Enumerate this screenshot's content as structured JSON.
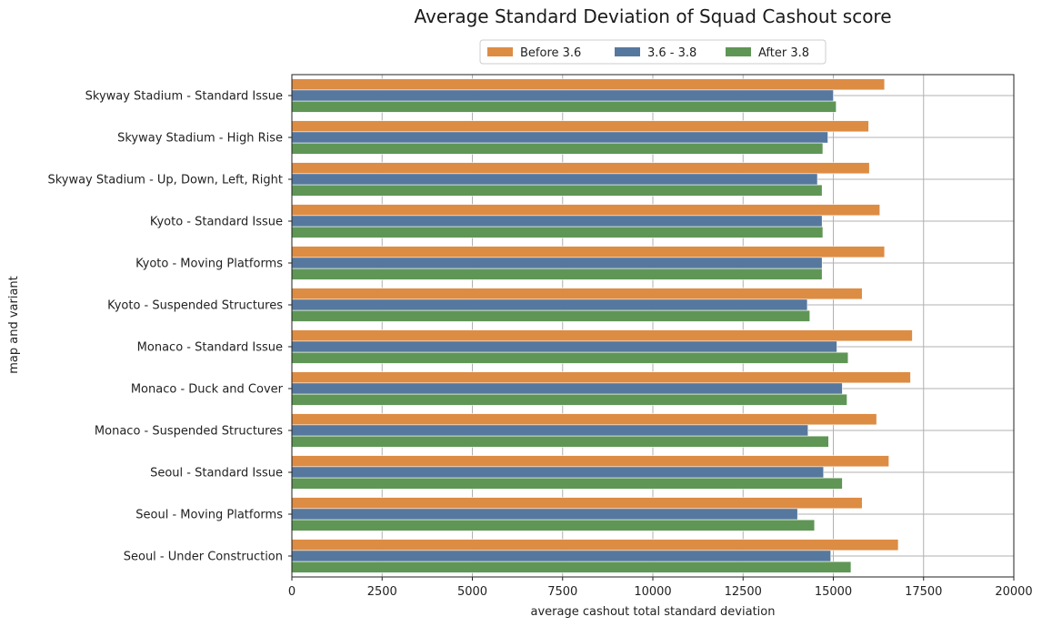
{
  "chart_data": {
    "type": "bar",
    "orientation": "horizontal",
    "title": "Average Standard Deviation of Squad Cashout score",
    "xlabel": "average cashout total standard deviation",
    "ylabel": "map and variant",
    "xlim": [
      0,
      20000
    ],
    "xticks": [
      0,
      2500,
      5000,
      7500,
      10000,
      12500,
      15000,
      17500,
      20000
    ],
    "grid": true,
    "legend_position": "top-center",
    "categories": [
      "Skyway Stadium - Standard Issue",
      "Skyway Stadium - High Rise",
      "Skyway Stadium - Up, Down, Left, Right",
      "Kyoto - Standard Issue",
      "Kyoto - Moving Platforms",
      "Kyoto - Suspended Structures",
      "Monaco - Standard Issue",
      "Monaco - Duck and Cover",
      "Monaco - Suspended Structures",
      "Seoul - Standard Issue",
      "Seoul - Moving Platforms",
      "Seoul - Under Construction"
    ],
    "series": [
      {
        "name": "Before 3.6",
        "color": "#dd8c44",
        "values": [
          16420,
          15980,
          16000,
          16290,
          16420,
          15800,
          17190,
          17140,
          16200,
          16540,
          15800,
          16800
        ]
      },
      {
        "name": "3.6 - 3.8",
        "color": "#56789e",
        "values": [
          15000,
          14850,
          14560,
          14690,
          14690,
          14280,
          15100,
          15250,
          14300,
          14730,
          14010,
          14930
        ]
      },
      {
        "name": "After 3.8",
        "color": "#5f9656",
        "values": [
          15080,
          14710,
          14690,
          14710,
          14690,
          14350,
          15410,
          15380,
          14870,
          15250,
          14480,
          15490
        ]
      }
    ]
  }
}
